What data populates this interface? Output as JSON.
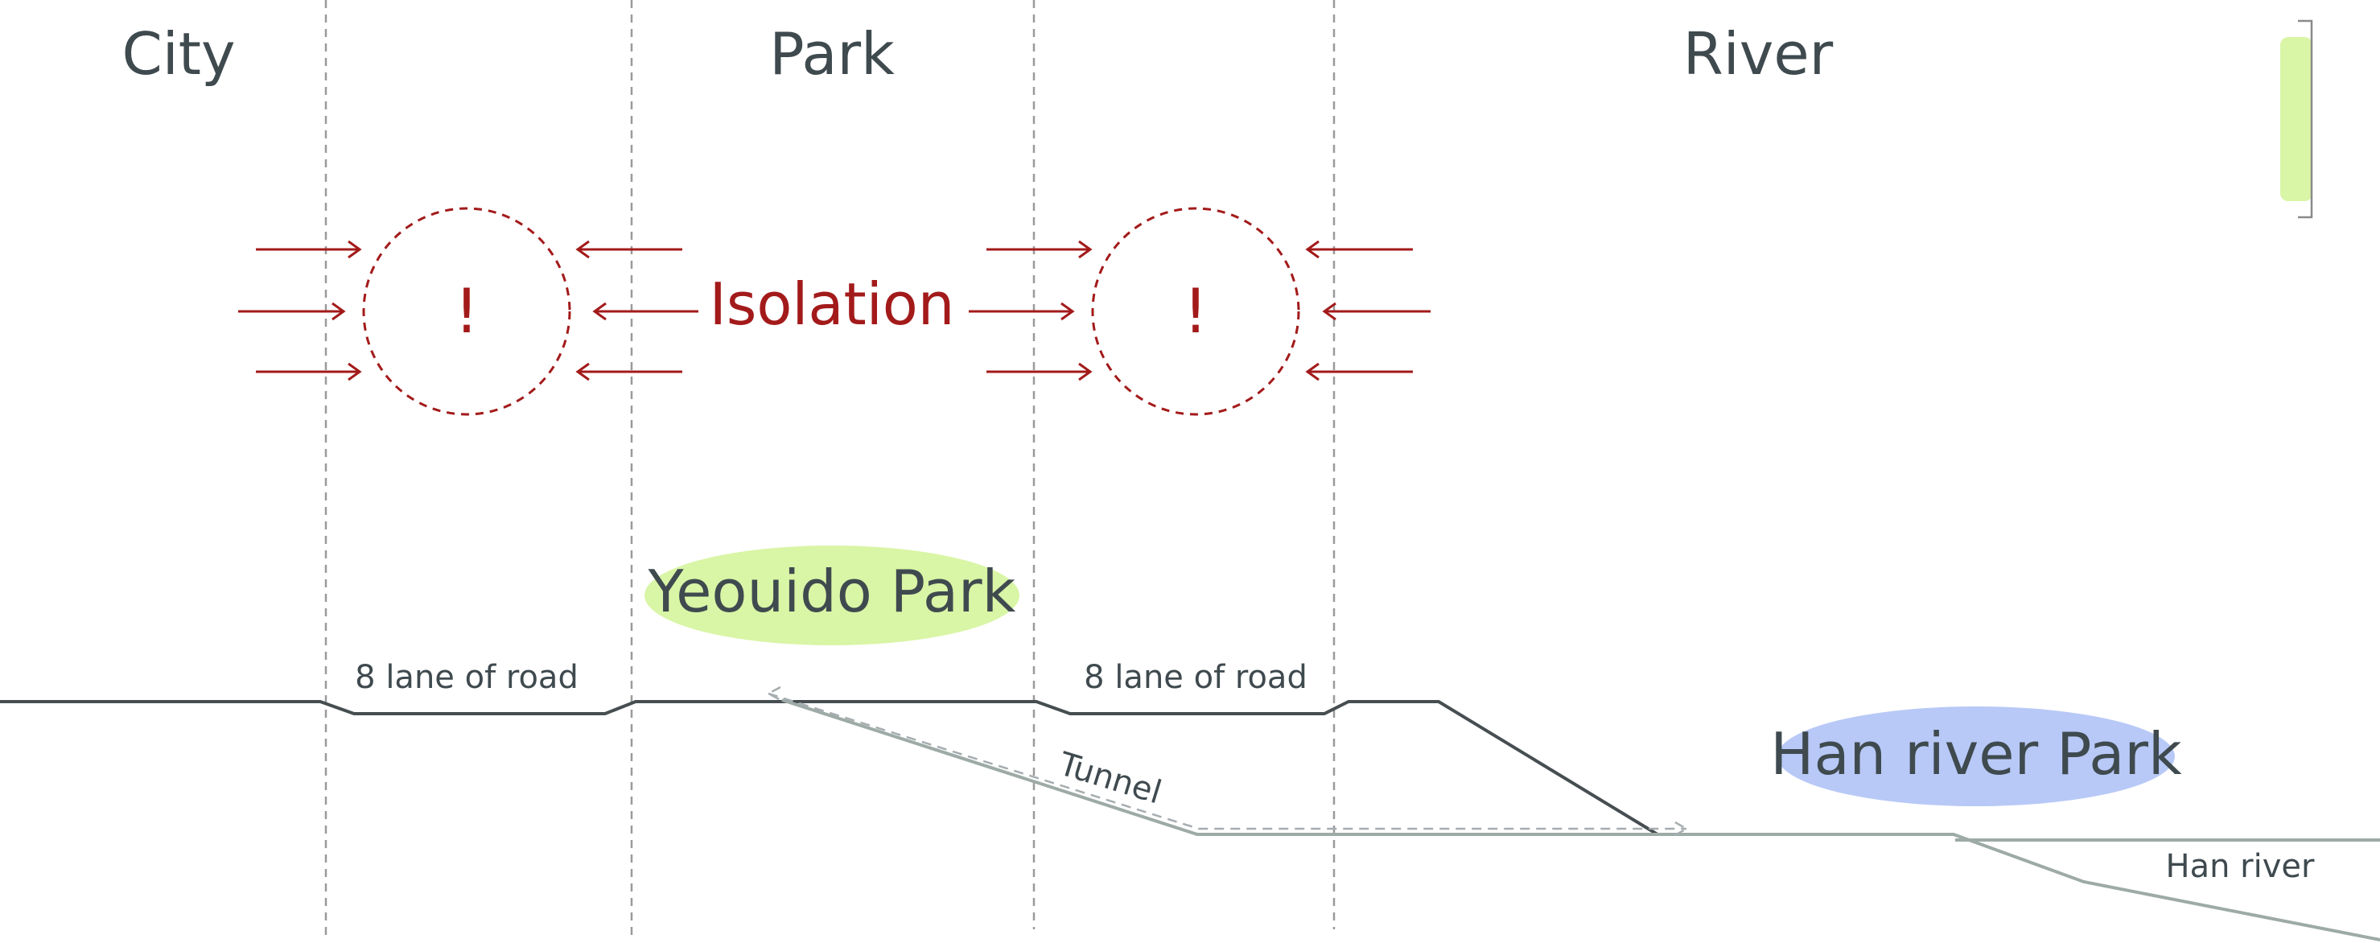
{
  "zones": {
    "city": "City",
    "park": "Park",
    "river": "River"
  },
  "isolation": {
    "word": "Isolation",
    "alert_left": "!",
    "alert_right": "!"
  },
  "places": {
    "yeouido_park": "Yeouido Park",
    "han_river_park": "Han river Park"
  },
  "section": {
    "road_left": "8 lane of road",
    "road_right": "8 lane of road",
    "tunnel": "Tunnel",
    "han_river": "Han river"
  },
  "colors": {
    "isolation_red": "#a31a1a",
    "park_green": "#d9f5a6",
    "river_blue": "#b8c9f7",
    "road_dark": "#464e51",
    "ground_light": "#9daaa6"
  },
  "icons": {
    "legend": "green-legend-swatch-icon"
  }
}
